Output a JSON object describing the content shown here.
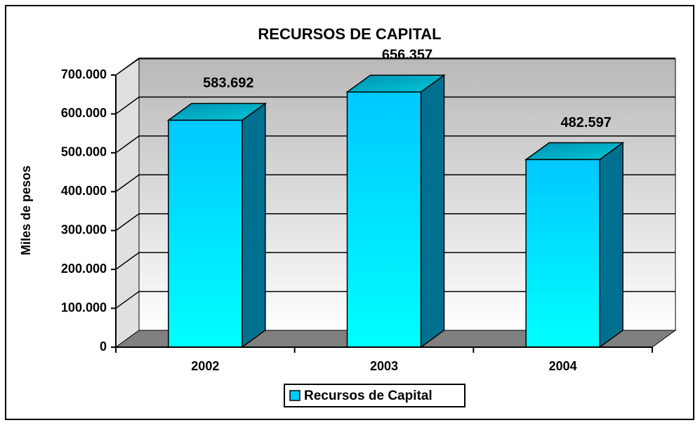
{
  "chart_data": {
    "type": "bar3d",
    "title": "RECURSOS DE CAPITAL",
    "y_label": "Miles de pesos",
    "categories": [
      "2002",
      "2003",
      "2004"
    ],
    "series": [
      {
        "name": "Recursos de Capital",
        "color": "#00ccff",
        "values": [
          583692,
          656357,
          482597
        ],
        "value_labels": [
          "583.692",
          "656.357",
          "482.597"
        ]
      }
    ],
    "ylim": [
      0,
      700000
    ],
    "yticks": [
      0,
      {
        "value": 100000,
        "label": "100.000"
      },
      {
        "value": 200000,
        "label": "200.000"
      },
      {
        "value": 300000,
        "label": "300.000"
      },
      {
        "value": 400000,
        "label": "400.000"
      },
      {
        "value": 500000,
        "label": "500.000"
      },
      {
        "value": 600000,
        "label": "600.000"
      },
      {
        "value": 700000,
        "label": "700.000"
      }
    ],
    "grid": true,
    "legend": "bottom"
  }
}
